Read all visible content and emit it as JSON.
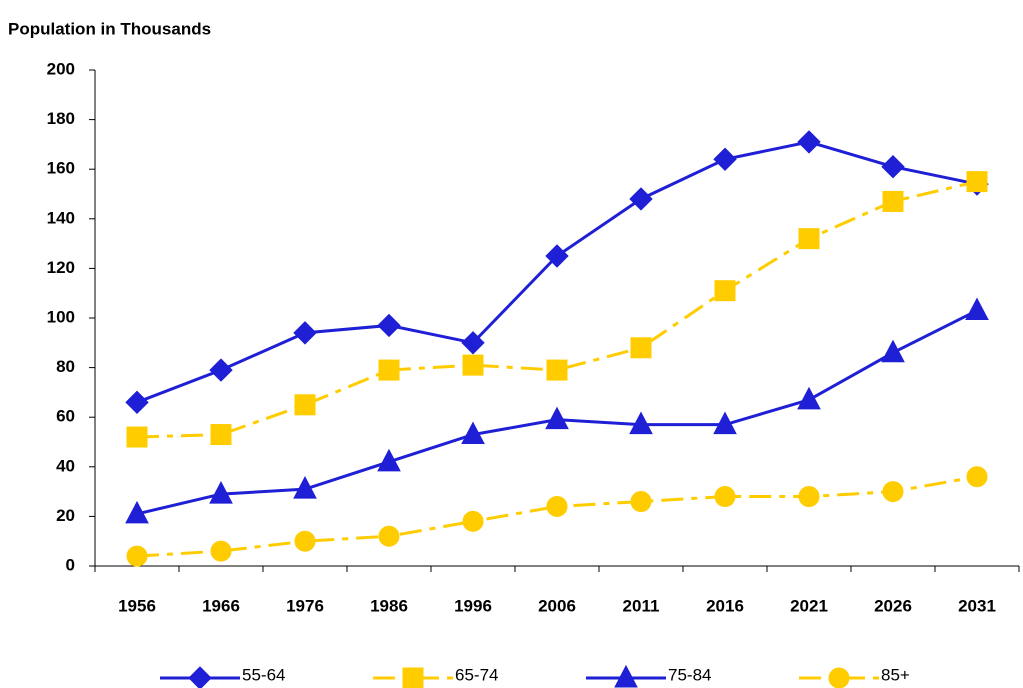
{
  "chart_data": {
    "type": "line",
    "title": "Population in Thousands",
    "categories": [
      "1956",
      "1966",
      "1976",
      "1986",
      "1996",
      "2006",
      "2011",
      "2016",
      "2021",
      "2026",
      "2031"
    ],
    "series": [
      {
        "name": "55-64",
        "color": "#1f1fd6",
        "line_style": "solid",
        "marker": "diamond",
        "values": [
          66,
          79,
          94,
          97,
          90,
          125,
          148,
          164,
          171,
          161,
          154
        ]
      },
      {
        "name": "65-74",
        "color": "#ffcc00",
        "line_style": "dashdot",
        "marker": "square",
        "values": [
          52,
          53,
          65,
          79,
          81,
          79,
          88,
          111,
          132,
          147,
          155
        ]
      },
      {
        "name": "75-84",
        "color": "#1f1fd6",
        "line_style": "solid",
        "marker": "triangle",
        "values": [
          21,
          29,
          31,
          42,
          53,
          59,
          57,
          57,
          67,
          86,
          103
        ]
      },
      {
        "name": "85+",
        "color": "#ffcc00",
        "line_style": "dashdot",
        "marker": "circle",
        "values": [
          4,
          6,
          10,
          12,
          18,
          24,
          26,
          28,
          28,
          30,
          36
        ]
      }
    ],
    "ylim": [
      0,
      200
    ],
    "yticks": [
      0,
      20,
      40,
      60,
      80,
      100,
      120,
      140,
      160,
      180,
      200
    ],
    "legend": "bottom"
  }
}
